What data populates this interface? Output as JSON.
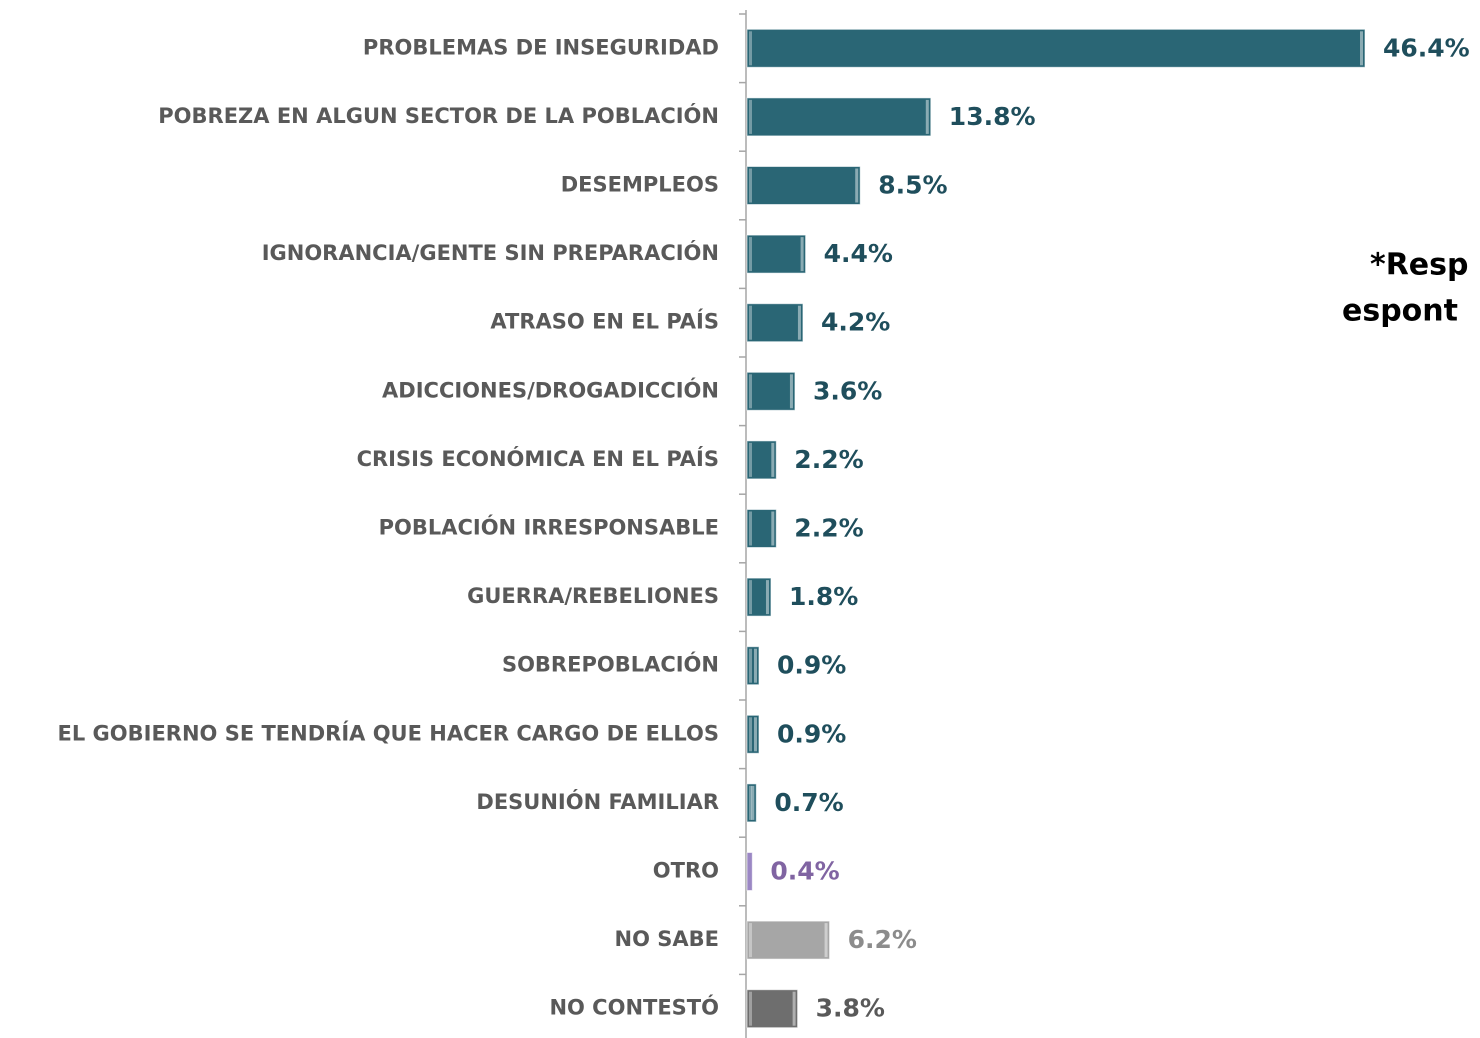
{
  "chart_data": {
    "type": "bar",
    "orientation": "horizontal",
    "categories": [
      "PROBLEMAS DE INSEGURIDAD",
      "POBREZA EN ALGUN SECTOR DE LA POBLACIÓN",
      "DESEMPLEOS",
      "IGNORANCIA/GENTE SIN PREPARACIÓN",
      "ATRASO EN EL PAÍS",
      "ADICCIONES/DROGADICCIÓN",
      "CRISIS ECONÓMICA EN EL PAÍS",
      "POBLACIÓN IRRESPONSABLE",
      "GUERRA/REBELIONES",
      "SOBREPOBLACIÓN",
      "EL GOBIERNO SE TENDRÍA QUE HACER CARGO DE ELLOS",
      "DESUNIÓN FAMILIAR",
      "OTRO",
      "NO SABE",
      "NO CONTESTÓ"
    ],
    "values": [
      46.4,
      13.8,
      8.5,
      4.4,
      4.2,
      3.6,
      2.2,
      2.2,
      1.8,
      0.9,
      0.9,
      0.7,
      0.4,
      6.2,
      3.8
    ],
    "value_labels": [
      "46.4%",
      "13.8%",
      "8.5%",
      "4.4%",
      "4.2%",
      "3.6%",
      "2.2%",
      "2.2%",
      "1.8%",
      "0.9%",
      "0.9%",
      "0.7%",
      "0.4%",
      "6.2%",
      "3.8%"
    ],
    "colors": [
      "#2a6675",
      "#2a6675",
      "#2a6675",
      "#2a6675",
      "#2a6675",
      "#2a6675",
      "#2a6675",
      "#2a6675",
      "#2a6675",
      "#2a6675",
      "#2a6675",
      "#2a6675",
      "#9b87c4",
      "#a6a6a6",
      "#6e6e6e"
    ],
    "label_colors": [
      "#1f4e5c",
      "#1f4e5c",
      "#1f4e5c",
      "#1f4e5c",
      "#1f4e5c",
      "#1f4e5c",
      "#1f4e5c",
      "#1f4e5c",
      "#1f4e5c",
      "#1f4e5c",
      "#1f4e5c",
      "#1f4e5c",
      "#8064a2",
      "#8c8c8c",
      "#595959"
    ],
    "annotation": [
      "*Resp",
      "espont"
    ]
  }
}
